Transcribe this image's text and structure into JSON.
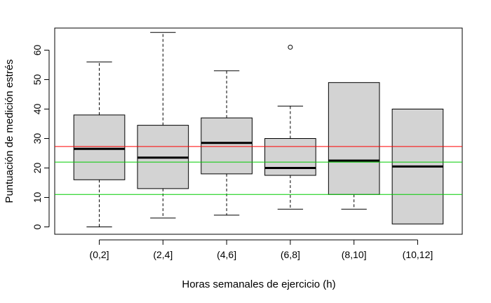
{
  "chart_data": {
    "type": "boxplot",
    "title": "",
    "xlabel": "Horas semanales de ejercicio (h)",
    "ylabel": "Puntuación de medición estrés",
    "categories": [
      "(0,2]",
      "(2,4]",
      "(4,6]",
      "(6,8]",
      "(8,10]",
      "(10,12]"
    ],
    "ylim": [
      -2.5,
      67.5
    ],
    "yticks": [
      0,
      10,
      20,
      30,
      40,
      50,
      60
    ],
    "boxes": [
      {
        "category": "(0,2]",
        "min": 0,
        "q1": 16,
        "median": 26.5,
        "q3": 38,
        "max": 56,
        "outliers": []
      },
      {
        "category": "(2,4]",
        "min": 3,
        "q1": 13,
        "median": 23.5,
        "q3": 34.5,
        "max": 66,
        "outliers": []
      },
      {
        "category": "(4,6]",
        "min": 4,
        "q1": 18,
        "median": 28.5,
        "q3": 37,
        "max": 53,
        "outliers": []
      },
      {
        "category": "(6,8]",
        "min": 6,
        "q1": 17.5,
        "median": 20,
        "q3": 30,
        "max": 41,
        "outliers": [
          61
        ]
      },
      {
        "category": "(8,10]",
        "min": 6,
        "q1": 11,
        "median": 22.5,
        "q3": 49,
        "max": 49,
        "outliers": []
      },
      {
        "category": "(10,12]",
        "min": 1,
        "q1": 1,
        "median": 20.5,
        "q3": 40,
        "max": 40,
        "outliers": []
      }
    ],
    "hlines": [
      {
        "y": 27.3,
        "color": "#ff0000"
      },
      {
        "y": 22,
        "color": "#00cc00"
      },
      {
        "y": 11,
        "color": "#00cc00"
      }
    ],
    "box_fill": "#d3d3d3",
    "grid": false,
    "legend": "none"
  }
}
